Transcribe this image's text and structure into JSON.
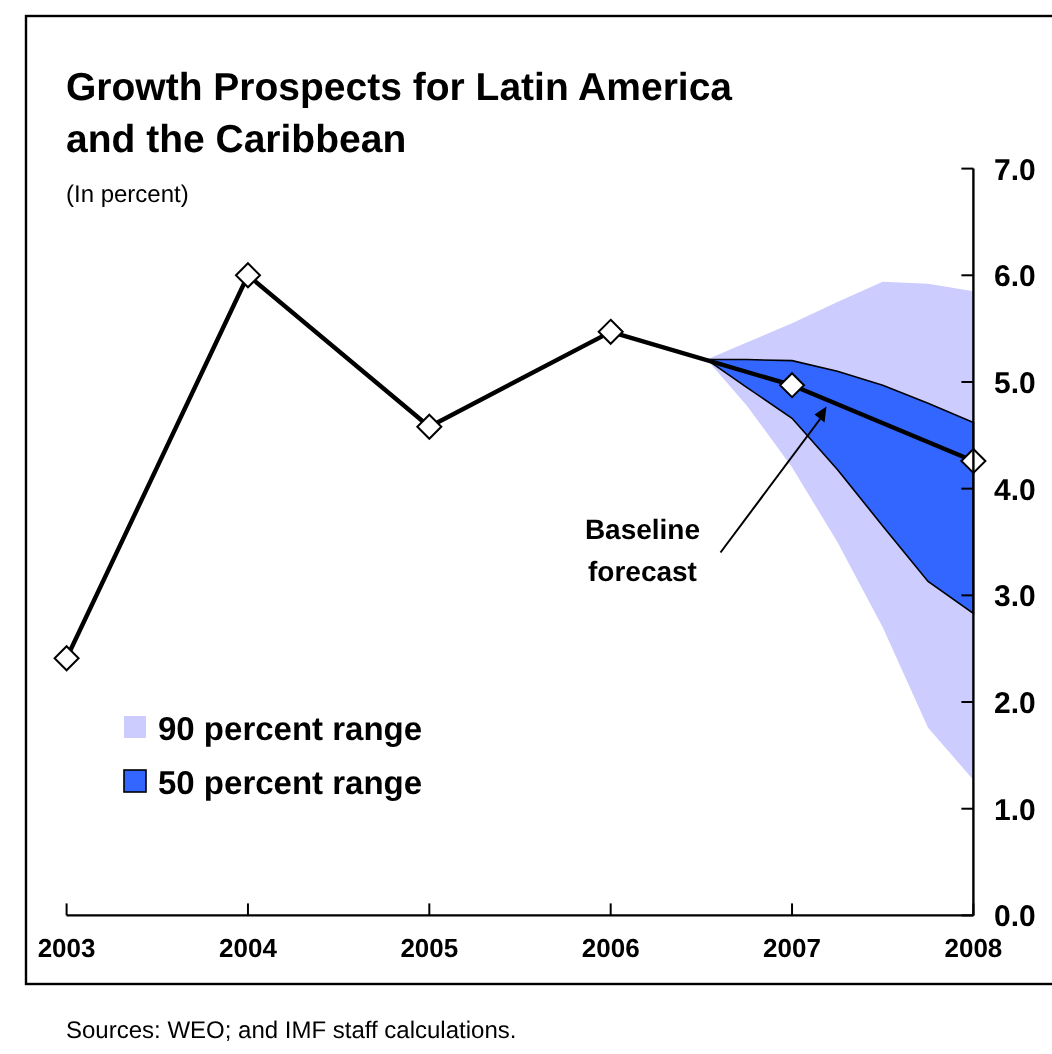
{
  "chart_data": {
    "type": "line",
    "title": "Growth Prospects for Latin America and the Caribbean",
    "subtitle": "(In percent)",
    "x": [
      2003,
      2004,
      2005,
      2006,
      2007,
      2008
    ],
    "series": [
      {
        "name": "90 percent range",
        "color": "#ccccff",
        "x": [
          2006.53,
          2006.75,
          2007,
          2007.25,
          2007.5,
          2007.75,
          2008
        ],
        "values": [
          null,
          null,
          null,
          null,
          null,
          null,
          null
        ],
        "lower": [
          5.21,
          4.78,
          4.2,
          3.5,
          2.7,
          1.76,
          1.27
        ],
        "upper": [
          5.21,
          5.37,
          5.55,
          5.75,
          5.94,
          5.92,
          5.85
        ]
      },
      {
        "name": "50 percent range",
        "color": "#3366ff",
        "x": [
          2006.53,
          2006.75,
          2007,
          2007.25,
          2007.5,
          2007.75,
          2008
        ],
        "values": [
          null,
          null,
          null,
          null,
          null,
          null,
          null
        ],
        "lower": [
          5.21,
          4.95,
          4.66,
          4.18,
          3.65,
          3.13,
          2.83
        ],
        "upper": [
          5.21,
          5.21,
          5.2,
          5.1,
          4.97,
          4.8,
          4.62
        ]
      },
      {
        "color": "#000000",
        "values": [
          2.41,
          6.0,
          4.58,
          5.47,
          4.97,
          4.26
        ]
      }
    ],
    "xlim": [
      2003,
      2008
    ],
    "xticks": [
      2003,
      2004,
      2005,
      2006,
      2007,
      2008
    ],
    "ylim": [
      0,
      7
    ],
    "yticks": [
      {
        "value": 0,
        "label": "0.0"
      },
      {
        "value": 1,
        "label": "1.0"
      },
      {
        "value": 2,
        "label": "2.0"
      },
      {
        "value": 3,
        "label": "3.0"
      },
      {
        "value": 4,
        "label": "4.0"
      },
      {
        "value": 5,
        "label": "5.0"
      },
      {
        "value": 6,
        "label": "6.0"
      },
      {
        "value": 7,
        "label": "7.0"
      }
    ],
    "marker": "diamond",
    "line_style": "solid",
    "grid": false,
    "legend": "bottom left",
    "annotations": [
      {
        "text": "Baseline forecast",
        "x": 2007.19,
        "y": 4.77
      },
      "Sources: WEO; and IMF staff calculations."
    ]
  }
}
